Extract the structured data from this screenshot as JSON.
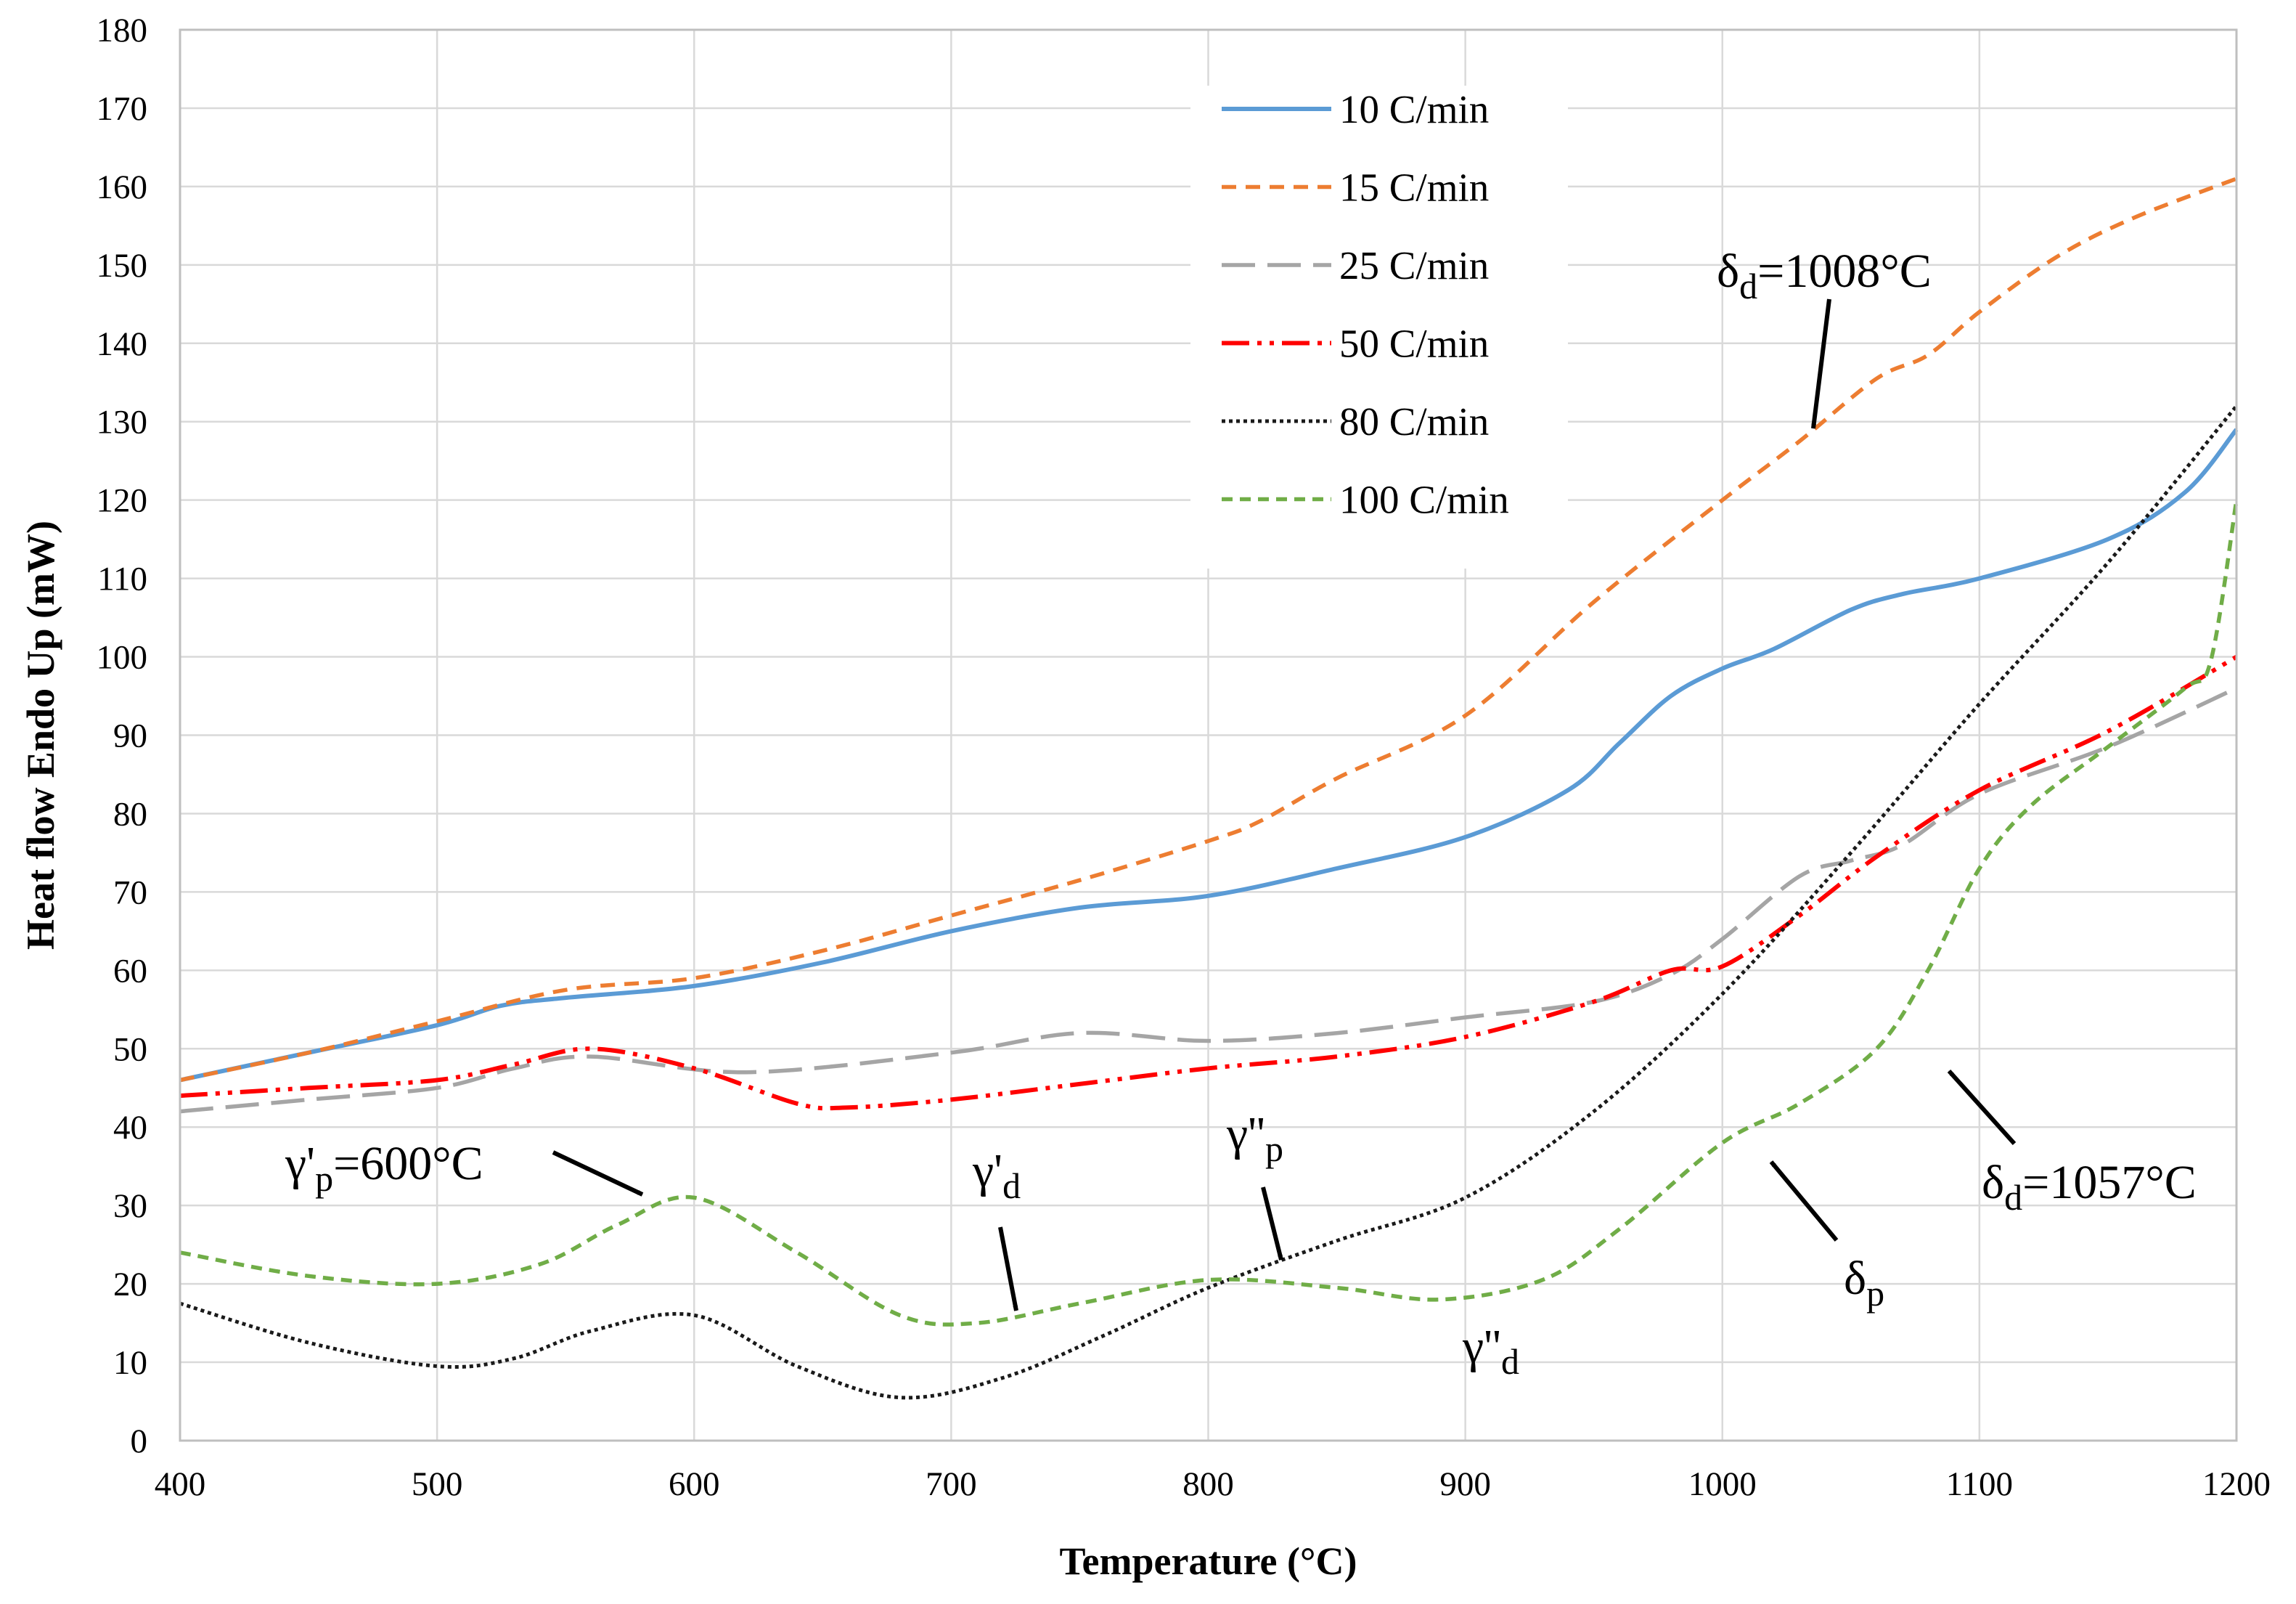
{
  "chart_data": {
    "type": "line",
    "title": "",
    "xlabel": "Temperature (°C)",
    "ylabel": "Heat flow Endo Up (mW)",
    "xlim": [
      400,
      1200
    ],
    "ylim": [
      0,
      180
    ],
    "xticks": [
      400,
      500,
      600,
      700,
      800,
      900,
      1000,
      1100,
      1200
    ],
    "yticks": [
      0,
      10,
      20,
      30,
      40,
      50,
      60,
      70,
      80,
      90,
      100,
      110,
      120,
      130,
      140,
      150,
      160,
      170,
      180
    ],
    "grid": true,
    "legend_position": "top-center",
    "series": [
      {
        "name": "10 C/min",
        "color": "#5B9BD5",
        "style": "solid",
        "x": [
          400,
          450,
          500,
          525,
          550,
          600,
          650,
          700,
          750,
          800,
          850,
          900,
          940,
          960,
          980,
          1000,
          1020,
          1050,
          1070,
          1100,
          1150,
          1180,
          1200
        ],
        "y": [
          46,
          49.5,
          53,
          55.5,
          56.5,
          58,
          61,
          65,
          68,
          69.5,
          73,
          77,
          83,
          89,
          95,
          98.5,
          101,
          106,
          108,
          110,
          115,
          121,
          129
        ]
      },
      {
        "name": "15 C/min",
        "color": "#ED7D31",
        "style": "dashed",
        "x": [
          400,
          450,
          500,
          550,
          600,
          650,
          700,
          750,
          800,
          820,
          850,
          900,
          950,
          1000,
          1030,
          1060,
          1080,
          1100,
          1130,
          1160,
          1200
        ],
        "y": [
          46,
          49.5,
          53.5,
          57.5,
          59,
          62.5,
          67,
          71.5,
          76.5,
          79,
          84.5,
          92.5,
          107,
          120,
          127.5,
          135.5,
          138.5,
          144,
          151,
          156,
          161
        ]
      },
      {
        "name": "25 C/min",
        "color": "#A5A5A5",
        "style": "longdash",
        "x": [
          400,
          450,
          500,
          530,
          560,
          620,
          700,
          750,
          800,
          850,
          900,
          950,
          980,
          1000,
          1030,
          1050,
          1070,
          1100,
          1150,
          1200
        ],
        "y": [
          42,
          43.5,
          45,
          47.5,
          49,
          47,
          49.5,
          52,
          51,
          52,
          54,
          56,
          59.5,
          64,
          72,
          74,
          76,
          82.5,
          88.5,
          96
        ]
      },
      {
        "name": "50 C/min",
        "color": "#FF0000",
        "style": "dashdotdot",
        "x": [
          400,
          450,
          500,
          530,
          560,
          600,
          640,
          660,
          700,
          750,
          800,
          850,
          900,
          950,
          980,
          1000,
          1030,
          1060,
          1100,
          1150,
          1200
        ],
        "y": [
          44,
          45,
          46,
          48,
          50,
          47.5,
          43,
          42.5,
          43.5,
          45.5,
          47.5,
          49,
          51.5,
          56,
          60,
          60.5,
          67,
          74.5,
          83,
          90.5,
          100
        ]
      },
      {
        "name": "80 C/min",
        "color": "#1A1A1A",
        "style": "dotted",
        "x": [
          400,
          450,
          500,
          530,
          560,
          600,
          640,
          680,
          720,
          760,
          800,
          850,
          900,
          950,
          1000,
          1050,
          1100,
          1150,
          1200
        ],
        "y": [
          17.5,
          12.5,
          9.5,
          10.5,
          14,
          16,
          9.5,
          5.5,
          8,
          13.5,
          19.5,
          25.5,
          31,
          42,
          57,
          75,
          94,
          112,
          132
        ]
      },
      {
        "name": "100 C/min",
        "color": "#70AD47",
        "style": "shortdash",
        "x": [
          400,
          450,
          500,
          540,
          570,
          600,
          640,
          680,
          710,
          750,
          800,
          850,
          890,
          930,
          960,
          1000,
          1030,
          1060,
          1080,
          1100,
          1120,
          1150,
          1180,
          1190,
          1200
        ],
        "y": [
          24,
          21,
          20,
          22.5,
          27.5,
          31,
          24,
          16,
          15,
          17.5,
          20.5,
          19.5,
          18,
          20.5,
          27,
          38,
          43,
          50,
          60,
          73,
          81,
          88.5,
          96,
          99.5,
          120
        ]
      }
    ],
    "annotations": [
      {
        "base": "γ'",
        "sub": "p",
        "tail": "=600°C"
      },
      {
        "base": "γ'",
        "sub": "d",
        "tail": ""
      },
      {
        "base": "γ''",
        "sub": "p",
        "tail": ""
      },
      {
        "base": "γ''",
        "sub": "d",
        "tail": ""
      },
      {
        "base": "δ",
        "sub": "d",
        "tail": "=1008°C"
      },
      {
        "base": "δ",
        "sub": "d",
        "tail": "=1057°C"
      },
      {
        "base": "δ",
        "sub": "p",
        "tail": ""
      }
    ]
  }
}
